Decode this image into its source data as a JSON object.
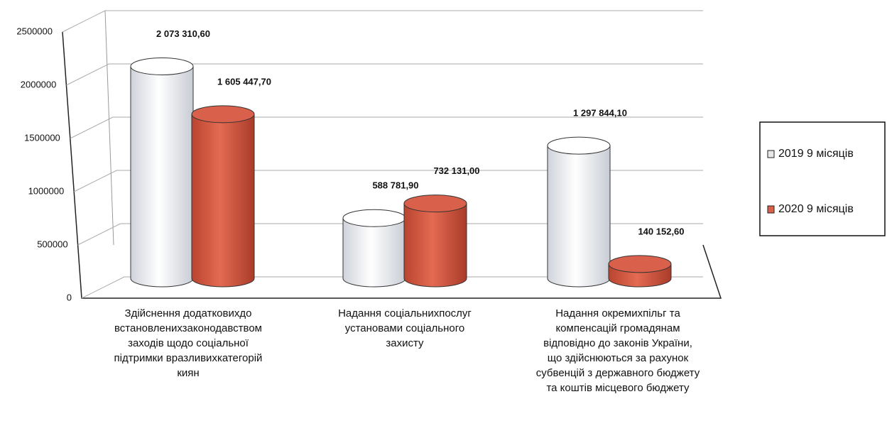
{
  "chart_data": {
    "type": "bar3d",
    "categories": [
      "Здійснення додатковихдо встановленихзаконодавством заходів щодо соціальної підтримки вразливихкатегорій киян",
      "Надання соціальнихпослуг установами соціального захисту",
      "Надання окремихпільг та компенсацій громадянам відповідно до законів України, що здійснюються за рахунок субвенцій з державного бюджету та коштів місцевого бюджету"
    ],
    "series": [
      {
        "name": "2019 9 місяців",
        "color": "#ffffff",
        "values": [
          2073310.6,
          588781.9,
          1297844.1
        ],
        "value_labels": [
          "2 073 310,60",
          "588 781,90",
          "1 297 844,10"
        ]
      },
      {
        "name": "2020 9 місяців",
        "color": "#d9604a",
        "values": [
          1605447.7,
          732131.0,
          140152.6
        ],
        "value_labels": [
          "1 605 447,70",
          "732 131,00",
          "140 152,60"
        ]
      }
    ],
    "ylim": [
      0,
      2500000
    ],
    "yticks": [
      0,
      500000,
      1000000,
      1500000,
      2000000,
      2500000
    ],
    "grid": true,
    "legend": "right"
  }
}
